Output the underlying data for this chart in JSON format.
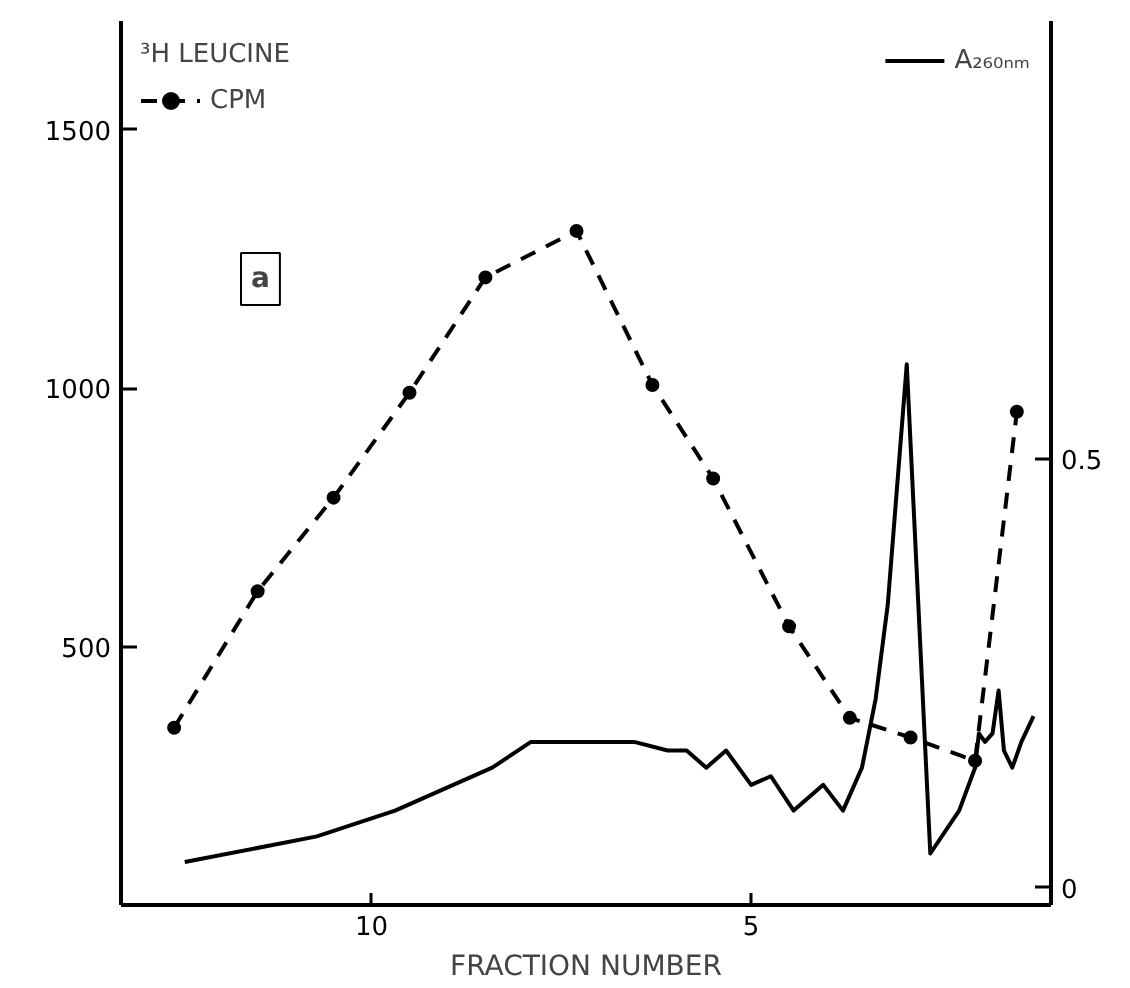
{
  "chart_data": {
    "type": "line",
    "xlabel": "FRACTION NUMBER",
    "legend_title": "³H LEUCINE",
    "annotations": [
      "a"
    ],
    "xlim": [
      13.3,
      1.05
    ],
    "xticks": [
      10,
      5
    ],
    "ylim": [
      0,
      1710
    ],
    "yticks": [
      500,
      1000,
      1500
    ],
    "y2lim": [
      -0.02,
      1.01
    ],
    "y2ticks": [
      0,
      0.5
    ],
    "grid": false,
    "legend": "top",
    "series": [
      {
        "name": "CPM",
        "color": "#000000",
        "line_style": "dashed",
        "marker": "circle",
        "x": [
          12.6,
          11.5,
          10.5,
          9.5,
          8.5,
          7.3,
          6.3,
          5.5,
          4.5,
          3.7,
          2.9,
          2.05,
          1.5
        ],
        "values": [
          343,
          607,
          788,
          991,
          1214,
          1304,
          1006,
          825,
          539,
          362,
          324,
          279,
          954
        ]
      },
      {
        "name": "A₂₆₀ₙₘ",
        "color": "#000000",
        "line_style": "solid",
        "marker": "none",
        "axis": "y2",
        "x": [
          12.46,
          10.72,
          9.69,
          8.41,
          7.9,
          7.13,
          6.54,
          6.1,
          5.85,
          5.59,
          5.33,
          5.0,
          4.74,
          4.44,
          4.05,
          3.79,
          3.54,
          3.36,
          3.2,
          2.95,
          2.64,
          2.26,
          2.05,
          2.0,
          1.92,
          1.82,
          1.74,
          1.67,
          1.56,
          1.44,
          1.28
        ],
        "values": [
          0.03,
          0.06,
          0.09,
          0.14,
          0.17,
          0.17,
          0.17,
          0.16,
          0.16,
          0.14,
          0.16,
          0.12,
          0.13,
          0.09,
          0.12,
          0.09,
          0.14,
          0.22,
          0.33,
          0.61,
          0.04,
          0.09,
          0.14,
          0.18,
          0.17,
          0.18,
          0.23,
          0.16,
          0.14,
          0.17,
          0.2
        ]
      }
    ]
  }
}
